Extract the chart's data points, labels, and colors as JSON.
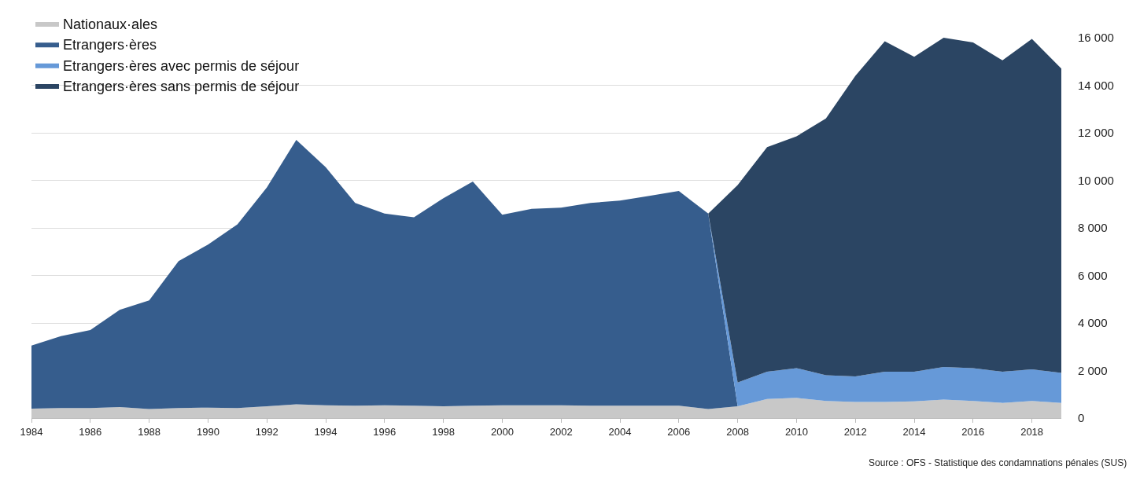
{
  "chart_data": {
    "type": "area",
    "stacked": true,
    "x": [
      1984,
      1985,
      1986,
      1987,
      1988,
      1989,
      1990,
      1991,
      1992,
      1993,
      1994,
      1995,
      1996,
      1997,
      1998,
      1999,
      2000,
      2001,
      2002,
      2003,
      2004,
      2005,
      2006,
      2007,
      2008,
      2009,
      2010,
      2011,
      2012,
      2013,
      2014,
      2015,
      2016,
      2017,
      2018,
      2019
    ],
    "series": [
      {
        "name": "Nationaux·ales",
        "color": "#c8c8c8",
        "values": [
          400,
          420,
          420,
          460,
          380,
          420,
          440,
          420,
          500,
          580,
          540,
          520,
          540,
          520,
          500,
          520,
          540,
          540,
          540,
          520,
          520,
          520,
          520,
          380,
          500,
          800,
          850,
          720,
          680,
          680,
          700,
          780,
          720,
          640,
          720,
          640
        ]
      },
      {
        "name": "Etrangers·ères",
        "color": "#365d8d",
        "values": [
          2650,
          3030,
          3280,
          4090,
          4570,
          6180,
          6860,
          7730,
          9200,
          11120,
          10010,
          8530,
          8060,
          7930,
          8750,
          9430,
          8010,
          8260,
          8310,
          8530,
          8630,
          8830,
          9030,
          8220,
          0,
          0,
          0,
          0,
          0,
          0,
          0,
          0,
          0,
          0,
          0,
          0
        ]
      },
      {
        "name": "Etrangers·ères avec permis de séjour",
        "color": "#6699d8",
        "values": [
          0,
          0,
          0,
          0,
          0,
          0,
          0,
          0,
          0,
          0,
          0,
          0,
          0,
          0,
          0,
          0,
          0,
          0,
          0,
          0,
          0,
          0,
          0,
          0,
          1000,
          1150,
          1250,
          1080,
          1070,
          1270,
          1250,
          1370,
          1380,
          1310,
          1330,
          1260
        ]
      },
      {
        "name": "Etrangers·ères sans permis de séjour",
        "color": "#2b4563",
        "values": [
          0,
          0,
          0,
          0,
          0,
          0,
          0,
          0,
          0,
          0,
          0,
          0,
          0,
          0,
          0,
          0,
          0,
          0,
          0,
          0,
          0,
          0,
          0,
          0,
          8300,
          9450,
          9750,
          10800,
          12650,
          13900,
          13250,
          13850,
          13700,
          13100,
          13900,
          12800
        ]
      }
    ],
    "xlim": [
      1984,
      2019
    ],
    "xticks": [
      1984,
      1986,
      1988,
      1990,
      1992,
      1994,
      1996,
      1998,
      2000,
      2002,
      2004,
      2006,
      2008,
      2010,
      2012,
      2014,
      2016,
      2018
    ],
    "ylim": [
      0,
      16000
    ],
    "yticks": [
      0,
      {
        "value": 2000,
        "label": "2 000"
      },
      {
        "value": 4000,
        "label": "4 000"
      },
      {
        "value": 6000,
        "label": "6 000"
      },
      {
        "value": 8000,
        "label": "8 000"
      },
      {
        "value": 10000,
        "label": "10 000"
      },
      {
        "value": 12000,
        "label": "12 000"
      },
      {
        "value": 14000,
        "label": "14 000"
      },
      {
        "value": 16000,
        "label": "16 000"
      }
    ],
    "grid": "y",
    "legend": "top left",
    "annotations": [
      "Source : OFS - Statistique des condamnations pénales (SUS)"
    ]
  }
}
